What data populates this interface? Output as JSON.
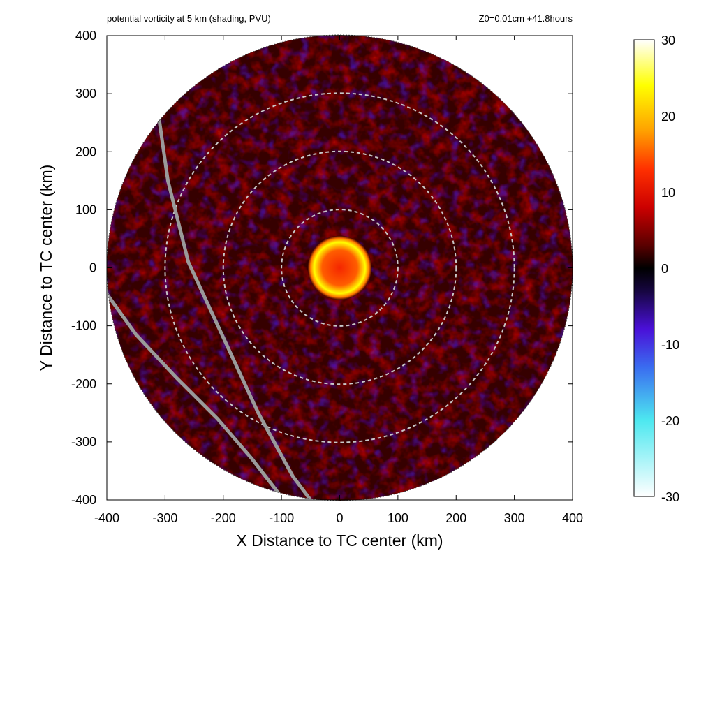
{
  "titles": {
    "left": "potential vorticity at 5 km (shading, PVU)",
    "right": "Z0=0.01cm  +41.8hours"
  },
  "chart_data": {
    "type": "heatmap",
    "title": "potential vorticity at 5 km (shading, PVU)",
    "subtitle": "Z0=0.01cm  +41.8hours",
    "xlabel": "X Distance to TC center (km)",
    "ylabel": "Y Distance to TC center (km)",
    "xlim": [
      -400,
      400
    ],
    "ylim": [
      -400,
      400
    ],
    "xticks": [
      -400,
      -300,
      -200,
      -100,
      0,
      100,
      200,
      300,
      400
    ],
    "yticks": [
      -400,
      -300,
      -200,
      -100,
      0,
      100,
      200,
      300,
      400
    ],
    "domain_radius_km": 400,
    "range_rings_km": [
      100,
      200,
      300
    ],
    "colorbar": {
      "min": -30,
      "max": 30,
      "ticks": [
        30,
        20,
        10,
        0,
        -10,
        -20,
        -30
      ],
      "stops": [
        {
          "value": -30,
          "color": "#ffffff"
        },
        {
          "value": -20,
          "color": "#4de8f0"
        },
        {
          "value": -13,
          "color": "#3a6cf0"
        },
        {
          "value": -8,
          "color": "#4a10d8"
        },
        {
          "value": -3,
          "color": "#160640"
        },
        {
          "value": 0,
          "color": "#000000"
        },
        {
          "value": 3,
          "color": "#5a0000"
        },
        {
          "value": 8,
          "color": "#cc0000"
        },
        {
          "value": 13,
          "color": "#ff3000"
        },
        {
          "value": 18,
          "color": "#ffa000"
        },
        {
          "value": 24,
          "color": "#ffff00"
        },
        {
          "value": 30,
          "color": "#ffffff"
        }
      ]
    },
    "core": {
      "center": [
        0,
        0
      ],
      "peak_pv": 24,
      "eye_pv": 12,
      "eyewall_radius_km": 55
    },
    "tracks": [
      {
        "points": [
          [
            -310,
            255
          ],
          [
            -295,
            150
          ],
          [
            -260,
            10
          ],
          [
            -200,
            -120
          ],
          [
            -140,
            -250
          ],
          [
            -80,
            -360
          ],
          [
            -50,
            -400
          ]
        ]
      },
      {
        "points": [
          [
            -400,
            -45
          ],
          [
            -350,
            -115
          ],
          [
            -280,
            -190
          ],
          [
            -210,
            -260
          ],
          [
            -150,
            -330
          ],
          [
            -100,
            -395
          ]
        ]
      }
    ]
  }
}
